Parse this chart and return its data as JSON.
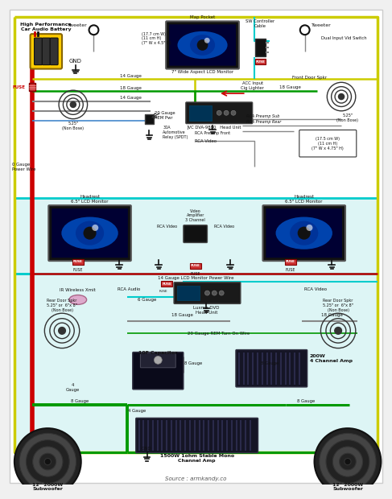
{
  "bg_color": "#f0f0f0",
  "source_text": "Source : armkandy.co",
  "wire_colors": {
    "red": "#cc0000",
    "yellow": "#cccc00",
    "green": "#009900",
    "blue": "#0044cc",
    "cyan": "#00cccc",
    "black": "#111111",
    "gray": "#888888",
    "lightgreen": "#44cc44",
    "pink": "#cc88aa"
  },
  "labels": {
    "battery": "High Performance\nCar Audio Battery",
    "gnd": "GND",
    "fuse": "FUSE",
    "tweeter_l": "Tweeter",
    "tweeter_r": "Tweeter",
    "map_pocket_title": "Map Pocket",
    "map_pocket_sub": "7\" Wide Aspect LCD Monitor",
    "map_dims": "(17.7 cm W)\n(11 cm H)\n(7\" W x 4.5\" H)",
    "sw_controller": "SW Controller\nCable",
    "dual_input": "Dual Input Vid Switch",
    "acc_input": "ACC Input\nCig Lighter",
    "front_door_spkr": "Front Door Spkr",
    "spkr_525_nb": "5.25\"\n(Non Bose)",
    "gauge_14": "14 Gauge",
    "gauge_18": "18 Gauge",
    "gauge_14b": "14 Gauge",
    "gauge_20_rem": "20 Gauge\nREM Pwr",
    "relay": "30A\nAutomotive\nRelay (SPDT)",
    "jvc_head": "JVC DVA-9880   Head Unit",
    "rca_preamp_sub": "RCA Preamp Sub",
    "rca_preamp_rear": "RCA Preamp Rear",
    "rca_preamp_front": "RCA Preamp Front",
    "rca_video": "RCA Video",
    "headrest_l": "Headrest\n6.5\" LCD Monitor",
    "headrest_r": "Headrest\n6.5\" LCD Monitor",
    "right_dims": "(17.5 cm W)\n(11 cm H)\n(7\" W x 4.75\" H)",
    "video_amp": "Video\nAmplifier\n3 Channel",
    "rca_video2": "RCA Video",
    "gauge_lcd": "14 Gauge LCD Monitor Power Wire",
    "zero_gauge": "0 Gauge\nPower Wire",
    "ir_xmit": "IR Wireless Xmit",
    "rca_audio": "RCA Audio",
    "gauge_6": "6 Gauge",
    "luxma": "Luxma DVD\nHead Unit",
    "rca_video3": "RCA Video",
    "rear_spkr_l": "Rear Door Spkr\n5.25\" or  6\"x 8\"\n(Non Bose)",
    "rear_spkr_r": "Rear Door Spkr\n5.25\" or  6\"x 8\"\n(Non Bose)",
    "gauge_18b": "18 Gauge",
    "gauge_18c": "18 Gauge",
    "gauge_20_rem2": "20 Gauge REM Turn On Wire",
    "capacitor": "10F Capacitor",
    "amp_200w": "200W\n4 Channel Amp",
    "gauge_8": "8 Gauge",
    "gauge_4": "4\nGauge",
    "gauge_4b": "4 Gauge",
    "sub_l": "12\" 2000W\nSubwoofer",
    "sub_r": "12\" 2000W\nSubwoofer",
    "mono_amp": "1500W 1ohm Stable Mono\nChannel Amp",
    "gnd2": "GND"
  }
}
